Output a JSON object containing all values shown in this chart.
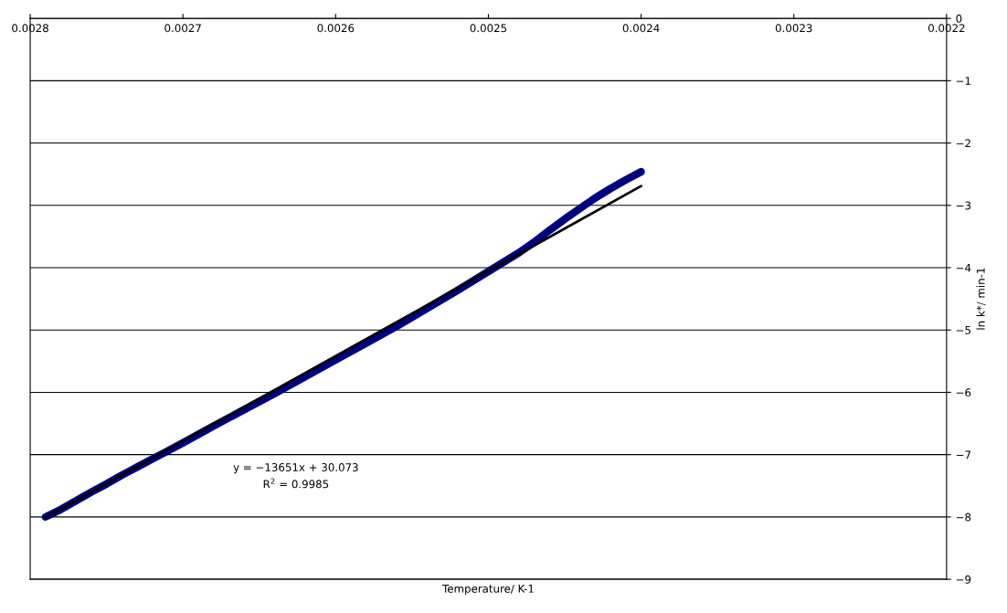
{
  "chart_data": {
    "type": "line",
    "xlabel": "Temperature/ K-1",
    "ylabel": "ln k*/ min-1",
    "xlim": [
      0.0028,
      0.0022
    ],
    "xticks": [
      0.0028,
      0.0027,
      0.0026,
      0.0025,
      0.0024,
      0.0023,
      0.0022
    ],
    "ylim": [
      -9,
      0
    ],
    "yticks": [
      {
        "value": 0,
        "label": "0"
      },
      {
        "value": -1,
        "label": "−1"
      },
      {
        "value": -2,
        "label": "−2"
      },
      {
        "value": -3,
        "label": "−3"
      },
      {
        "value": -4,
        "label": "−4"
      },
      {
        "value": -5,
        "label": "−5"
      },
      {
        "value": -6,
        "label": "−6"
      },
      {
        "value": -7,
        "label": "−7"
      },
      {
        "value": -8,
        "label": "−8"
      },
      {
        "value": -9,
        "label": "−9"
      }
    ],
    "grid": "y",
    "series": [
      {
        "color": "#000080",
        "x": [
          0.00279,
          0.00278,
          0.00277,
          0.00276,
          0.00275,
          0.00274,
          0.00273,
          0.00272,
          0.00271,
          0.0027,
          0.00268,
          0.00266,
          0.00264,
          0.00262,
          0.0026,
          0.00258,
          0.00256,
          0.00254,
          0.00252,
          0.0025,
          0.00249,
          0.00248,
          0.00247,
          0.00246,
          0.00245,
          0.00244,
          0.00243,
          0.00242,
          0.00241,
          0.0024
        ],
        "values": [
          -8.0,
          -7.88,
          -7.74,
          -7.6,
          -7.47,
          -7.33,
          -7.2,
          -7.07,
          -6.94,
          -6.81,
          -6.54,
          -6.28,
          -6.02,
          -5.75,
          -5.48,
          -5.21,
          -4.94,
          -4.65,
          -4.36,
          -4.06,
          -3.91,
          -3.76,
          -3.59,
          -3.4,
          -3.22,
          -3.05,
          -2.88,
          -2.73,
          -2.59,
          -2.46
        ]
      },
      {
        "type": "line",
        "color": "#000000",
        "x": [
          0.00279,
          0.0024
        ],
        "values": [
          -8.01,
          -2.69
        ]
      }
    ],
    "annotations": [
      "y = −13651x + 30.073",
      "R$^{2}$ = 0.9985"
    ]
  }
}
